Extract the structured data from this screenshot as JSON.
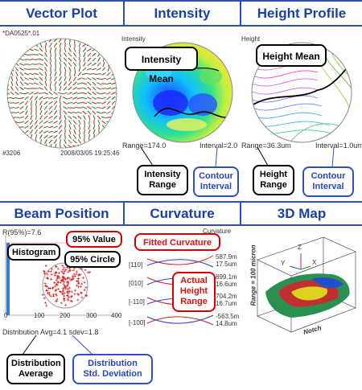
{
  "headers": {
    "vector_plot": "Vector Plot",
    "intensity": "Intensity",
    "height_profile": "Height Profile",
    "beam_position": "Beam  Position",
    "curvature": "Curvature",
    "map_3d": "3D Map"
  },
  "vector_panel": {
    "file_label": "*DA0525*.01",
    "id_label": "#3206",
    "timestamp": "2008/03/05 19:25:46"
  },
  "intensity_panel": {
    "axis_label": "Intensity",
    "range_text": "Range=174.0",
    "interval_text": "Interval=2.0",
    "callout_mean": "Intensity Mean",
    "callout_range_l1": "Intensity",
    "callout_range_l2": "Range",
    "callout_interval_l1": "Contour",
    "callout_interval_l2": "Interval"
  },
  "height_panel": {
    "axis_label": "Height",
    "range_text": "Range=36.3um",
    "interval_text": "Interval=1.0um",
    "callout_mean": "Height Mean",
    "callout_range_l1": "Height",
    "callout_range_l2": "Range",
    "callout_interval_l1": "Contour",
    "callout_interval_l2": "Interval"
  },
  "beam_panel": {
    "r95_text": "R(95%)=7.6",
    "callout_histogram": "Histogram",
    "callout_95value": "95% Value",
    "callout_95circle": "95% Circle",
    "x_ticks": [
      "0",
      "100",
      "200",
      "300",
      "400"
    ],
    "dist_text": "Distribution Avg=4.1 sdev=1.8",
    "callout_avg_l1": "Distribution",
    "callout_avg_l2": "Average",
    "callout_sdev_l1": "Distribution",
    "callout_sdev_l2": "Std. Deviation"
  },
  "curvature_panel": {
    "title_small": "Curvature",
    "callout_fitted": "Fitted Curvature",
    "callout_actual_l1": "Actual",
    "callout_actual_l2": "Height",
    "callout_actual_l3": "Range",
    "rows": [
      {
        "label": "[110]",
        "val1": "587.9m",
        "val2": "17.5um"
      },
      {
        "label": "[010]",
        "val1": "899.1m",
        "val2": "16.6um"
      },
      {
        "label": "[-110]",
        "val1": "704.2m",
        "val2": "16.7um"
      },
      {
        "label": "[-100]",
        "val1": "-563.5m",
        "val2": "14.8um"
      }
    ]
  },
  "map3d_panel": {
    "range_label": "Range = 100 micron",
    "notch_label": "Notch",
    "axis_x": "X",
    "axis_y": "Y",
    "axis_z": "Z"
  },
  "colors": {
    "header_blue": "#1a3fa8",
    "callout_red": "#d40000",
    "callout_blue": "#3050c0"
  }
}
